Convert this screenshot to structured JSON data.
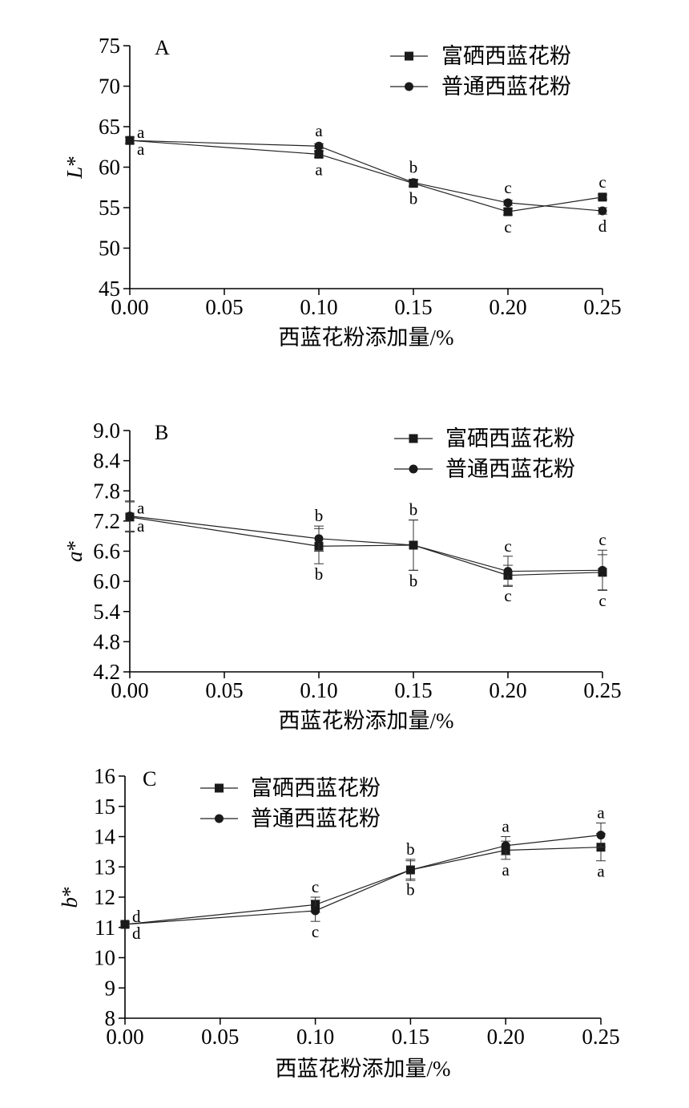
{
  "chart_data": [
    {
      "type": "line",
      "panel_label": "A",
      "ylabel_letter": "L",
      "ylabel_suffix": "*",
      "xlabel": "西蓝花粉添加量/%",
      "xlim": [
        0,
        0.25
      ],
      "ylim": [
        45,
        75
      ],
      "xticks": [
        0.0,
        0.05,
        0.1,
        0.15,
        0.2,
        0.25
      ],
      "xtick_labels": [
        "0.00",
        "0.05",
        "0.10",
        "0.15",
        "0.20",
        "0.25"
      ],
      "yticks": [
        45,
        50,
        55,
        60,
        65,
        70,
        75
      ],
      "ytick_labels": [
        "45",
        "50",
        "55",
        "60",
        "65",
        "70",
        "75"
      ],
      "legend_position": "top-right",
      "series": [
        {
          "name": "富硒西蓝花粉",
          "marker": "square",
          "x": [
            0,
            0.1,
            0.15,
            0.2,
            0.25
          ],
          "y": [
            63.3,
            61.6,
            58.0,
            54.5,
            56.3
          ],
          "err": [
            0.4,
            0.4,
            0.4,
            0.4,
            0.3
          ],
          "letters": [
            "a",
            "a",
            "b",
            "c",
            "c"
          ]
        },
        {
          "name": "普通西蓝花粉",
          "marker": "circle",
          "x": [
            0,
            0.1,
            0.15,
            0.2,
            0.25
          ],
          "y": [
            63.3,
            62.6,
            58.1,
            55.6,
            54.6
          ],
          "err": [
            0.4,
            0.3,
            0.4,
            0.3,
            0.4
          ],
          "letters": [
            "a",
            "a",
            "b",
            "c",
            "d"
          ]
        }
      ]
    },
    {
      "type": "line",
      "panel_label": "B",
      "ylabel_letter": "a",
      "ylabel_suffix": "*",
      "xlabel": "西蓝花粉添加量/%",
      "xlim": [
        0,
        0.25
      ],
      "ylim": [
        4.2,
        9.0
      ],
      "xticks": [
        0.0,
        0.05,
        0.1,
        0.15,
        0.2,
        0.25
      ],
      "xtick_labels": [
        "0.00",
        "0.05",
        "0.10",
        "0.15",
        "0.20",
        "0.25"
      ],
      "yticks": [
        4.2,
        4.8,
        5.4,
        6.0,
        6.6,
        7.2,
        7.8,
        8.4,
        9.0
      ],
      "ytick_labels": [
        "4.2",
        "4.8",
        "5.4",
        "6.0",
        "6.6",
        "7.2",
        "7.8",
        "8.4",
        "9.0"
      ],
      "legend_position": "top-right",
      "series": [
        {
          "name": "富硒西蓝花粉",
          "marker": "square",
          "x": [
            0,
            0.1,
            0.15,
            0.2,
            0.25
          ],
          "y": [
            7.28,
            6.7,
            6.72,
            6.12,
            6.18
          ],
          "err": [
            0.3,
            0.35,
            0.5,
            0.2,
            0.35
          ],
          "letters": [
            "a",
            "b",
            "b",
            "c",
            "c"
          ]
        },
        {
          "name": "普通西蓝花粉",
          "marker": "circle",
          "x": [
            0,
            0.1,
            0.15,
            0.2,
            0.25
          ],
          "y": [
            7.3,
            6.85,
            6.72,
            6.2,
            6.22
          ],
          "err": [
            0.3,
            0.25,
            0.5,
            0.3,
            0.4
          ],
          "letters": [
            "a",
            "b",
            "b",
            "c",
            "c"
          ]
        }
      ]
    },
    {
      "type": "line",
      "panel_label": "C",
      "ylabel_letter": "b",
      "ylabel_suffix": "*",
      "xlabel": "西蓝花粉添加量/%",
      "xlim": [
        0,
        0.25
      ],
      "ylim": [
        8,
        16
      ],
      "xticks": [
        0.0,
        0.05,
        0.1,
        0.15,
        0.2,
        0.25
      ],
      "xtick_labels": [
        "0.00",
        "0.05",
        "0.10",
        "0.15",
        "0.20",
        "0.25"
      ],
      "yticks": [
        8,
        9,
        10,
        11,
        12,
        13,
        14,
        15,
        16
      ],
      "ytick_labels": [
        "8",
        "9",
        "10",
        "11",
        "12",
        "13",
        "14",
        "15",
        "16"
      ],
      "legend_position": "top-left",
      "series": [
        {
          "name": "富硒西蓝花粉",
          "marker": "square",
          "x": [
            0,
            0.1,
            0.15,
            0.2,
            0.25
          ],
          "y": [
            11.1,
            11.75,
            12.9,
            13.55,
            13.65
          ],
          "err": [
            0.08,
            0.25,
            0.3,
            0.3,
            0.45
          ],
          "letters": [
            "d",
            "c",
            "b",
            "a",
            "a"
          ]
        },
        {
          "name": "普通西蓝花粉",
          "marker": "circle",
          "x": [
            0,
            0.1,
            0.15,
            0.2,
            0.25
          ],
          "y": [
            11.1,
            11.55,
            12.9,
            13.7,
            14.05
          ],
          "err": [
            0.08,
            0.35,
            0.35,
            0.3,
            0.4
          ],
          "letters": [
            "d",
            "c",
            "b",
            "a",
            "a"
          ]
        }
      ]
    }
  ]
}
